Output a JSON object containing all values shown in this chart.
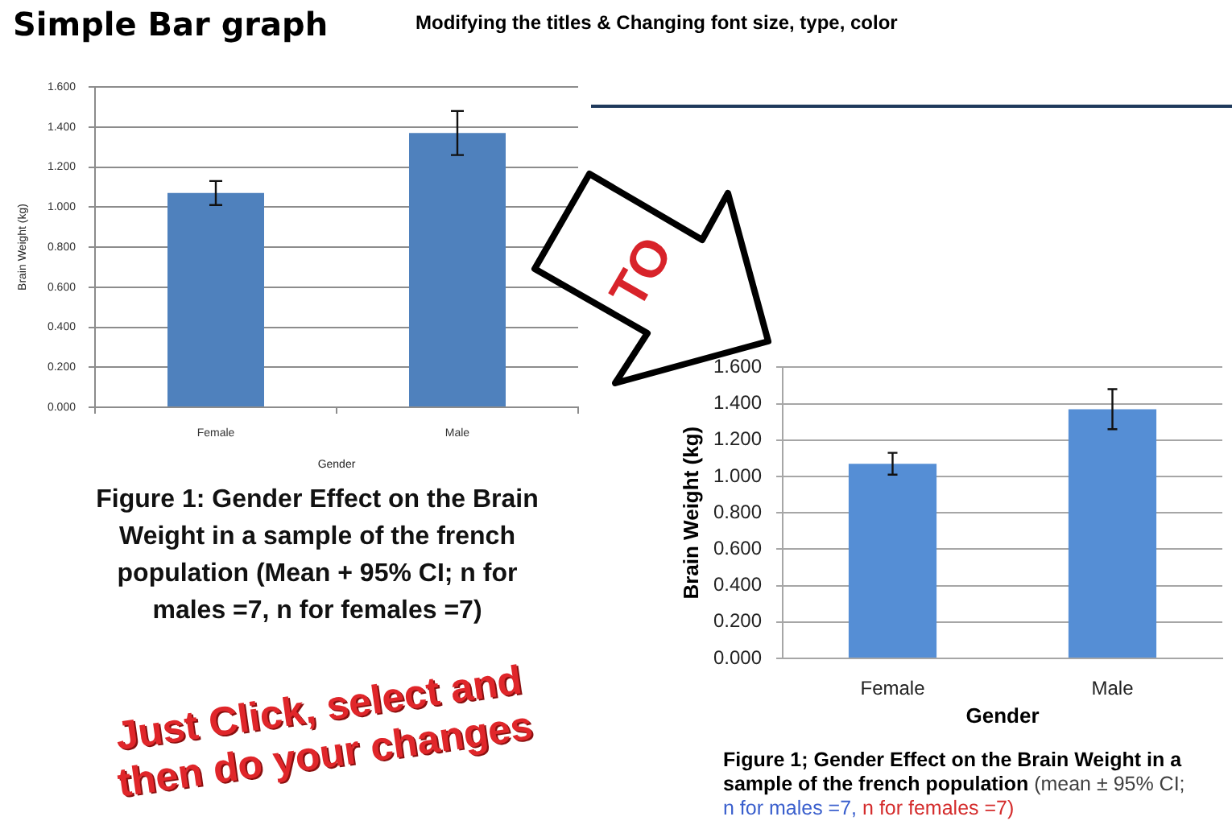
{
  "chart_data": [
    {
      "type": "bar",
      "title": "Simple Bar graph",
      "subtitle": "Modifying the titles & Changing font size, type, color",
      "xlabel": "Gender",
      "ylabel": "Brain Weight (kg)",
      "categories": [
        "Female",
        "Male"
      ],
      "values": [
        1.07,
        1.37
      ],
      "errors": [
        0.06,
        0.11
      ],
      "color": "#4f81bd",
      "ylim": [
        0,
        1.6
      ],
      "yticks": [
        {
          "value": 0,
          "label": "0.000"
        },
        {
          "value": 0.2,
          "label": "0.200"
        },
        {
          "value": 0.4,
          "label": "0.400"
        },
        {
          "value": 0.6,
          "label": "0.600"
        },
        {
          "value": 0.8,
          "label": "0.800"
        },
        {
          "value": 1,
          "label": "1.000"
        },
        {
          "value": 1.2,
          "label": "1.200"
        },
        {
          "value": 1.4,
          "label": "1.400"
        },
        {
          "value": 1.6,
          "label": "1.600"
        }
      ],
      "grid": "y",
      "annotations": [
        "Figure 1: Gender Effect on the Brain Weight in a sample of the french population (Mean + 95% CI; n for males =7, n for females =7)",
        "TO"
      ]
    },
    {
      "type": "bar",
      "xlabel": "Gender",
      "ylabel": "Brain Weight (kg)",
      "categories": [
        "Female",
        "Male"
      ],
      "values": [
        1.07,
        1.37
      ],
      "errors": [
        0.06,
        0.11
      ],
      "color": "#558ed5",
      "ylim": [
        0,
        1.6
      ],
      "yticks": [
        {
          "value": 0,
          "label": "0.000"
        },
        {
          "value": 0.2,
          "label": "0.200"
        },
        {
          "value": 0.4,
          "label": "0.400"
        },
        {
          "value": 0.6,
          "label": "0.600"
        },
        {
          "value": 0.8,
          "label": "0.800"
        },
        {
          "value": 1,
          "label": "1.000"
        },
        {
          "value": 1.2,
          "label": "1.200"
        },
        {
          "value": 1.4,
          "label": "1.400"
        },
        {
          "value": 1.6,
          "label": "1.600"
        }
      ],
      "grid": "y",
      "annotations": [
        "Figure 1; Gender Effect on the Brain Weight in a",
        "sample of the french population",
        "(mean ± 95% CI;",
        "n for males =7,",
        "n for females =7)",
        "Just Click, select and then do your changes"
      ]
    }
  ]
}
